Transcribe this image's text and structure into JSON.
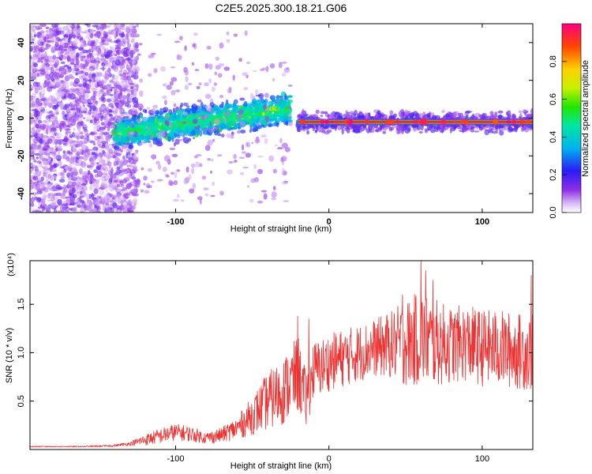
{
  "title": "C2E5.2025.300.18.21.G06",
  "chart_data": [
    {
      "type": "heatmap",
      "name": "spectrogram",
      "xlabel": "Height of straight line (km)",
      "ylabel": "Frequency (Hz)",
      "xlim": [
        -195,
        133
      ],
      "ylim": [
        -50,
        50
      ],
      "xticks": [
        -100,
        0,
        100
      ],
      "xtick_labels": [
        "-100",
        "0",
        "100"
      ],
      "yticks": [
        -40,
        -20,
        0,
        20,
        40
      ],
      "ytick_labels": [
        "-40",
        "-20",
        "0",
        "20",
        "40"
      ],
      "colorbar": {
        "label": "Normalized spectral amplitude",
        "range": [
          0,
          1
        ],
        "ticks": [
          0.0,
          0.2,
          0.4,
          0.6,
          0.8
        ],
        "tick_labels": [
          "0.0",
          "0.2",
          "0.4",
          "0.6",
          "0.8"
        ]
      },
      "regions": [
        {
          "name": "diffuse noise",
          "x": [
            -195,
            -125
          ],
          "freq_spread": 50,
          "amplitude": 0.1
        },
        {
          "name": "broad signal",
          "x": [
            -140,
            -25
          ],
          "center_freq_start": -8,
          "center_freq_end": 5,
          "freq_spread": 8,
          "amplitude": 0.35
        },
        {
          "name": "locked tone",
          "x": [
            -20,
            133
          ],
          "center_freq": -2,
          "freq_spread": 1,
          "amplitude": 0.95
        }
      ]
    },
    {
      "type": "line",
      "name": "snr",
      "xlabel": "Height of straight line (km)",
      "ylabel": "SNR (10 * v/v)",
      "y_multiplier": "(x10⁴)",
      "xlim": [
        -195,
        133
      ],
      "ylim": [
        0,
        1.95
      ],
      "xticks": [
        -100,
        0,
        100
      ],
      "xtick_labels": [
        "-100",
        "0",
        "100"
      ],
      "yticks": [
        0.5,
        1.0,
        1.5
      ],
      "ytick_labels": [
        "0.5",
        "1.0",
        "1.5"
      ],
      "series": [
        {
          "name": "SNR",
          "color": "#ee3333",
          "x": [
            -195,
            -180,
            -160,
            -140,
            -130,
            -120,
            -110,
            -100,
            -90,
            -80,
            -70,
            -60,
            -50,
            -40,
            -30,
            -20,
            -15,
            -10,
            -5,
            0,
            10,
            20,
            30,
            40,
            50,
            60,
            70,
            80,
            90,
            100,
            110,
            120,
            133
          ],
          "y": [
            0.03,
            0.03,
            0.03,
            0.04,
            0.06,
            0.1,
            0.14,
            0.18,
            0.16,
            0.12,
            0.15,
            0.22,
            0.35,
            0.5,
            0.6,
            0.78,
            0.5,
            0.82,
            0.85,
            0.9,
            0.95,
            1.0,
            1.05,
            1.08,
            1.1,
            1.15,
            1.1,
            1.08,
            1.1,
            1.05,
            1.05,
            1.02,
            1.0
          ],
          "noise": [
            0.005,
            0.005,
            0.005,
            0.01,
            0.02,
            0.06,
            0.08,
            0.09,
            0.08,
            0.06,
            0.08,
            0.12,
            0.2,
            0.3,
            0.35,
            0.4,
            0.3,
            0.3,
            0.3,
            0.3,
            0.3,
            0.3,
            0.3,
            0.35,
            0.45,
            0.5,
            0.45,
            0.4,
            0.4,
            0.4,
            0.4,
            0.4,
            0.4
          ],
          "peaks": [
            {
              "x": -20.5,
              "y": 1.38
            },
            {
              "x": -13,
              "y": 1.35
            },
            {
              "x": 48,
              "y": 1.6
            },
            {
              "x": 60,
              "y": 1.95
            },
            {
              "x": 63,
              "y": 1.85
            },
            {
              "x": 68,
              "y": 1.75
            },
            {
              "x": 132,
              "y": 1.8
            }
          ]
        }
      ]
    }
  ]
}
